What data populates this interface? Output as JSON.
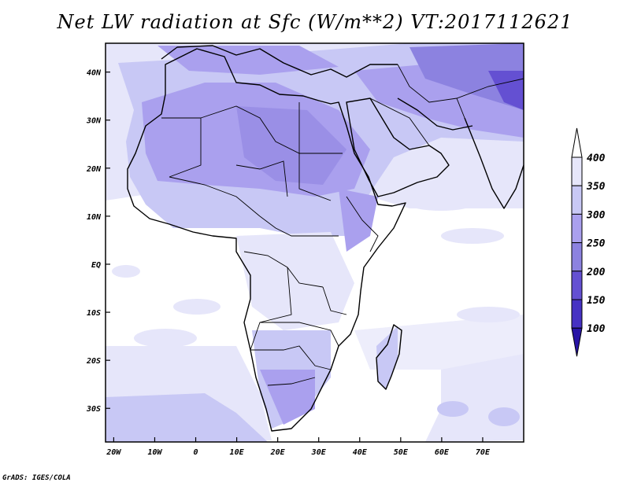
{
  "title": "Net LW radiation at Sfc (W/m**2) VT:2017112621",
  "footer": "GrADS: IGES/COLA",
  "map": {
    "projection": "latlon",
    "lon_range": [
      -22,
      80
    ],
    "lat_range": [
      -37,
      46
    ],
    "x_ticks": [
      {
        "lon": -20,
        "label": "20W"
      },
      {
        "lon": -10,
        "label": "10W"
      },
      {
        "lon": 0,
        "label": "0"
      },
      {
        "lon": 10,
        "label": "10E"
      },
      {
        "lon": 20,
        "label": "20E"
      },
      {
        "lon": 30,
        "label": "30E"
      },
      {
        "lon": 40,
        "label": "40E"
      },
      {
        "lon": 50,
        "label": "50E"
      },
      {
        "lon": 60,
        "label": "60E"
      },
      {
        "lon": 70,
        "label": "70E"
      }
    ],
    "y_ticks": [
      {
        "lat": 40,
        "label": "40N"
      },
      {
        "lat": 30,
        "label": "30N"
      },
      {
        "lat": 20,
        "label": "20N"
      },
      {
        "lat": 10,
        "label": "10N"
      },
      {
        "lat": 0,
        "label": "EQ"
      },
      {
        "lat": -10,
        "label": "10S"
      },
      {
        "lat": -20,
        "label": "20S"
      },
      {
        "lat": -30,
        "label": "30S"
      }
    ]
  },
  "colorbar": {
    "levels": [
      "400",
      "350",
      "300",
      "250",
      "200",
      "150",
      "100"
    ],
    "colors": [
      "#ffffff",
      "#e6e6fa",
      "#c8c8f5",
      "#aaa0ee",
      "#8c82e0",
      "#6450d2",
      "#4632c3",
      "#2814a5"
    ]
  }
}
